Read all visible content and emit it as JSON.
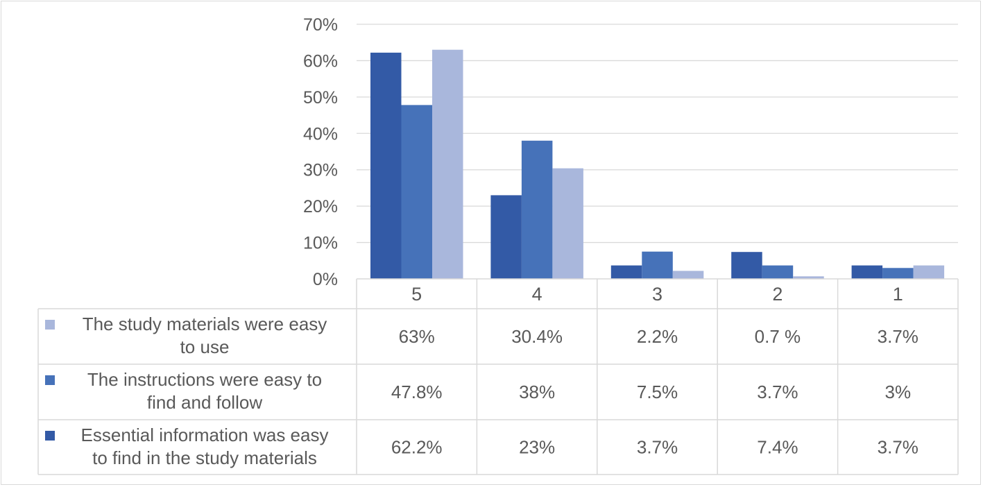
{
  "chart_data": {
    "type": "bar",
    "title": "",
    "xlabel": "",
    "ylabel": "",
    "categories": [
      "5",
      "4",
      "3",
      "2",
      "1"
    ],
    "ylim": [
      0,
      70
    ],
    "yticks": [
      0,
      10,
      20,
      30,
      40,
      50,
      60,
      70
    ],
    "ytick_labels": [
      "0%",
      "10%",
      "20%",
      "30%",
      "40%",
      "50%",
      "60%",
      "70%"
    ],
    "grid": true,
    "legend_placement": "data-table-left",
    "series": [
      {
        "name": "Essential information was easy to find in the study materials",
        "name_lines": [
          "Essential information was easy",
          "to find in the study materials"
        ],
        "color": "#335aa6",
        "values": [
          62.2,
          23,
          3.7,
          7.4,
          3.7
        ],
        "labels": [
          "62.2%",
          "23%",
          "3.7%",
          "7.4%",
          "3.7%"
        ]
      },
      {
        "name": "The instructions were easy to find and follow",
        "name_lines": [
          "The instructions were easy to",
          "find and follow"
        ],
        "color": "#4672b9",
        "values": [
          47.8,
          38,
          7.5,
          3.7,
          3
        ],
        "labels": [
          "47.8%",
          "38%",
          "7.5%",
          "3.7%",
          "3%"
        ]
      },
      {
        "name": "The study materials were easy to use",
        "name_lines": [
          "The study materials were easy",
          "to use"
        ],
        "color": "#a9b7dc",
        "values": [
          63,
          30.4,
          2.2,
          0.7,
          3.7
        ],
        "labels": [
          "63%",
          "30.4%",
          "2.2%",
          "0.7 %",
          "3.7%"
        ]
      }
    ],
    "table_row_order": [
      2,
      1,
      0
    ]
  }
}
